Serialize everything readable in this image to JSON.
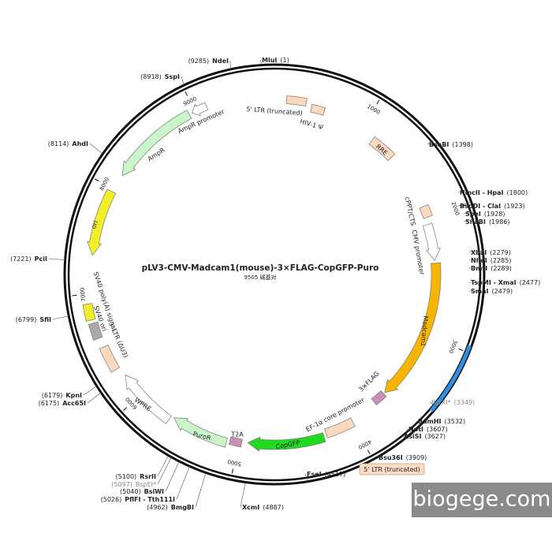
{
  "title": "pLV3-CMV-Madcam1(mouse)-3×FLAG-CopGFP-Puro",
  "subtitle": "9505 碱基对",
  "sites": [
    {
      "name": "MluI",
      "pos": "(1)"
    },
    {
      "name": "BsaBI",
      "pos": "(1398)"
    },
    {
      "name": "HincII - HpaI",
      "pos": "(1800)"
    },
    {
      "name": "BspDI - ClaI",
      "pos": "(1923)"
    },
    {
      "name": "SpeI",
      "pos": "(1928)"
    },
    {
      "name": "SnaBI",
      "pos": "(1986)"
    },
    {
      "name": "XbaI",
      "pos": "(2279)"
    },
    {
      "name": "NheI",
      "pos": "(2285)"
    },
    {
      "name": "BmtI",
      "pos": "(2289)"
    },
    {
      "name": "TspMI - XmaI",
      "pos": "(2477)"
    },
    {
      "name": "SmaI",
      "pos": "(2479)"
    },
    {
      "name": "BstXI*",
      "pos": "(3349)"
    },
    {
      "name": "BamHI",
      "pos": "(3532)"
    },
    {
      "name": "NotI",
      "pos": "(3607)"
    },
    {
      "name": "AsiSI",
      "pos": "(3627)"
    },
    {
      "name": "Bsu36I",
      "pos": "(3909)"
    },
    {
      "name": "FseI",
      "pos": "(4517)"
    },
    {
      "name": "XcmI",
      "pos": "(4887)"
    },
    {
      "name": "BmgBI",
      "pos": "(4962)"
    },
    {
      "name": "PflFI - Tth111I",
      "pos": "(5026)"
    },
    {
      "name": "BsiWI",
      "pos": "(5040)"
    },
    {
      "name": "BspEI*",
      "pos": "(5097)"
    },
    {
      "name": "RsrII",
      "pos": "(5100)"
    },
    {
      "name": "Acc65I",
      "pos": "(6175)"
    },
    {
      "name": "KpnI",
      "pos": "(6179)"
    },
    {
      "name": "SfiI",
      "pos": "(6799)"
    },
    {
      "name": "PciI",
      "pos": "(7221)"
    },
    {
      "name": "AhdI",
      "pos": "(8114)"
    },
    {
      "name": "SspI",
      "pos": "(8918)"
    },
    {
      "name": "NdeI",
      "pos": "(9285)"
    }
  ],
  "features": [
    {
      "label": "5' LTR (truncated)"
    },
    {
      "label": "HIV-1 Ψ"
    },
    {
      "label": "RRE"
    },
    {
      "label": "cPPT/CTS"
    },
    {
      "label": "CMV promoter"
    },
    {
      "label": "Madcam1"
    },
    {
      "label": "3×FLAG"
    },
    {
      "label": "EF-1α core promoter"
    },
    {
      "label": "CopGFP"
    },
    {
      "label": "T2A"
    },
    {
      "label": "PuroR"
    },
    {
      "label": "WPRE"
    },
    {
      "label": "3' LTR (ΔU3)"
    },
    {
      "label": "SV40 ori"
    },
    {
      "label": "SV40 poly(A) signal"
    },
    {
      "label": "ori"
    },
    {
      "label": "AmpR"
    },
    {
      "label": "AmpR promoter"
    }
  ],
  "ticks": [
    "1000",
    "2000",
    "3000",
    "4000",
    "5000",
    "6000",
    "7000",
    "8000",
    "9000"
  ],
  "boxed_label": "5' LTR (truncated)",
  "watermark": "biogege.com"
}
